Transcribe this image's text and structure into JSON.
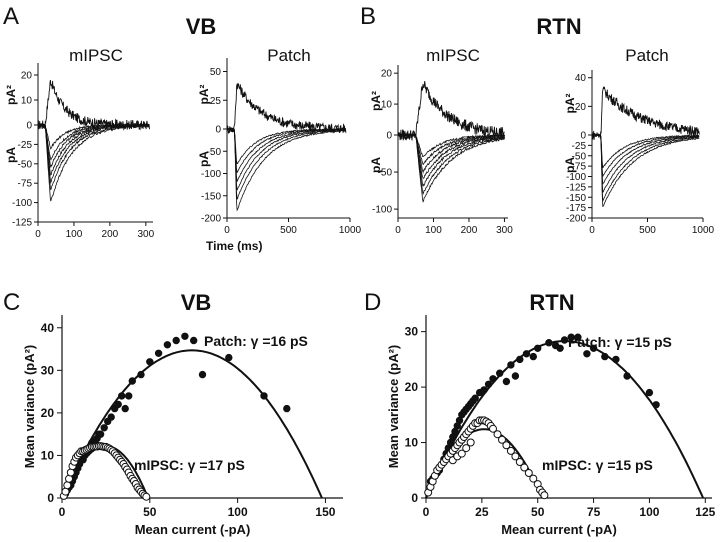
{
  "panels": {
    "A": {
      "letter": "A",
      "title": "VB"
    },
    "B": {
      "letter": "B",
      "title": "RTN"
    },
    "C": {
      "letter": "C",
      "title": "VB"
    },
    "D": {
      "letter": "D",
      "title": "RTN"
    }
  },
  "trace_plots": [
    {
      "id": "A-mIPSC",
      "subtitle": "mIPSC",
      "variance_axis": {
        "label": "pA²",
        "ticks": [
          0,
          10,
          20
        ],
        "range": [
          -4,
          24
        ],
        "tick_labels": [
          "0",
          "10",
          "20"
        ]
      },
      "current_axis": {
        "label": "pA",
        "ticks": [
          -25,
          -50,
          -75,
          -100,
          -125
        ],
        "tick_labels": [
          "-25",
          "-50",
          "-75",
          "-100",
          "-125"
        ],
        "range": [
          -125,
          0
        ]
      },
      "time_axis": {
        "ticks": [
          0,
          100,
          200,
          300
        ],
        "tick_labels": [
          "0",
          "100",
          "200",
          "300"
        ],
        "range": [
          0,
          320
        ]
      },
      "sweeps": {
        "onset_ms": 20,
        "peak_ms": 35,
        "current_peaks": [
          -30,
          -45,
          -55,
          -65,
          -75,
          -85,
          -100
        ],
        "current_decay_ms": 40,
        "variance_peak": 18,
        "variance_decay_ms": 40
      }
    },
    {
      "id": "A-Patch",
      "subtitle": "Patch",
      "variance_axis": {
        "label": "pA²",
        "ticks": [
          0,
          25,
          50
        ],
        "range": [
          -8,
          60
        ],
        "tick_labels": [
          "0",
          "25",
          "50"
        ]
      },
      "current_axis": {
        "label": "pA",
        "ticks": [
          -50,
          -100,
          -150,
          -200
        ],
        "tick_labels": [
          "-50",
          "-100",
          "-150",
          "-200"
        ],
        "range": [
          -200,
          0
        ]
      },
      "time_axis": {
        "ticks": [
          0,
          500,
          1000
        ],
        "tick_labels": [
          "0",
          "500",
          "1000"
        ],
        "range": [
          0,
          1000
        ]
      },
      "sweeps": {
        "onset_ms": 60,
        "peak_ms": 80,
        "current_peaks": [
          -80,
          -100,
          -120,
          -140,
          -160,
          -185
        ],
        "current_decay_ms": 160,
        "variance_peak": 40,
        "variance_decay_ms": 200
      }
    },
    {
      "id": "B-mIPSC",
      "subtitle": "mIPSC",
      "variance_axis": {
        "label": "pA²",
        "ticks": [
          0,
          10,
          20
        ],
        "range": [
          -3,
          22
        ],
        "tick_labels": [
          "0",
          "10",
          "20"
        ]
      },
      "current_axis": {
        "label": "pA",
        "ticks": [
          -50,
          -100
        ],
        "tick_labels": [
          "-50",
          "-100"
        ],
        "range": [
          -112,
          0
        ]
      },
      "time_axis": {
        "ticks": [
          0,
          100,
          200,
          300
        ],
        "tick_labels": [
          "0",
          "100",
          "200",
          "300"
        ],
        "range": [
          0,
          310
        ]
      },
      "sweeps": {
        "onset_ms": 50,
        "peak_ms": 70,
        "current_peaks": [
          -30,
          -40,
          -50,
          -60,
          -70,
          -80,
          -90
        ],
        "current_decay_ms": 55,
        "variance_peak": 17,
        "variance_decay_ms": 70
      }
    },
    {
      "id": "B-Patch",
      "subtitle": "Patch",
      "variance_axis": {
        "label": "pA²",
        "ticks": [
          0,
          20,
          40
        ],
        "range": [
          -6,
          44
        ],
        "tick_labels": [
          "0",
          "20",
          "40"
        ]
      },
      "current_axis": {
        "label": "pA",
        "ticks": [
          -25,
          -50,
          -75,
          -100,
          -125,
          -150,
          -175,
          -200
        ],
        "tick_labels": [
          "-25",
          "-50",
          "-75",
          "-100",
          "-125",
          "-150",
          "-175",
          "-200"
        ],
        "range": [
          -200,
          0
        ]
      },
      "time_axis": {
        "ticks": [
          0,
          500,
          1000
        ],
        "tick_labels": [
          "0",
          "500",
          "1000"
        ],
        "range": [
          0,
          1000
        ]
      },
      "sweeps": {
        "onset_ms": 80,
        "peak_ms": 95,
        "current_peaks": [
          -80,
          -100,
          -120,
          -140,
          -160,
          -175
        ],
        "current_decay_ms": 200,
        "variance_peak": 32,
        "variance_decay_ms": 350
      }
    }
  ],
  "time_label": "Time (ms)",
  "chart_data": [
    {
      "type": "scatter",
      "panel": "C",
      "title": "VB",
      "xlabel": "Mean current (-pA)",
      "ylabel": "Mean variance (pA²)",
      "xlim": [
        0,
        160
      ],
      "ylim": [
        0,
        43
      ],
      "xticks": [
        0,
        50,
        100,
        150
      ],
      "yticks": [
        0,
        10,
        20,
        30,
        40
      ],
      "series": [
        {
          "name": "Patch",
          "label": "Patch: γ =16 pS",
          "marker": "filled",
          "points": [
            [
              2,
              1
            ],
            [
              3,
              1.8
            ],
            [
              4,
              2.5
            ],
            [
              5,
              3
            ],
            [
              6,
              4
            ],
            [
              7,
              5
            ],
            [
              8,
              6
            ],
            [
              9,
              7
            ],
            [
              10,
              8
            ],
            [
              11,
              9.5
            ],
            [
              12,
              9
            ],
            [
              13,
              10
            ],
            [
              14,
              10.5
            ],
            [
              15,
              11
            ],
            [
              16,
              12
            ],
            [
              17,
              13
            ],
            [
              18,
              12.5
            ],
            [
              19,
              13.5
            ],
            [
              20,
              14
            ],
            [
              21,
              15
            ],
            [
              22,
              15
            ],
            [
              24,
              16.5
            ],
            [
              26,
              18
            ],
            [
              28,
              19
            ],
            [
              30,
              21
            ],
            [
              32,
              22
            ],
            [
              34,
              24
            ],
            [
              36,
              21
            ],
            [
              38,
              24
            ],
            [
              40,
              27.5
            ],
            [
              45,
              29
            ],
            [
              50,
              32
            ],
            [
              55,
              34
            ],
            [
              60,
              36
            ],
            [
              65,
              37
            ],
            [
              70,
              38
            ],
            [
              75,
              37
            ],
            [
              80,
              29
            ],
            [
              95,
              33
            ],
            [
              115,
              24
            ],
            [
              128,
              21
            ]
          ],
          "fit": {
            "vertex_x": 74,
            "max": 34.7,
            "x_intercept": 148
          }
        },
        {
          "name": "mIPSC",
          "label": "mIPSC: γ =17 pS",
          "marker": "open",
          "points": [
            [
              1,
              0.5
            ],
            [
              2,
              1.5
            ],
            [
              3,
              3
            ],
            [
              4,
              4.5
            ],
            [
              5,
              6
            ],
            [
              6,
              7.5
            ],
            [
              7,
              8.5
            ],
            [
              8,
              9.5
            ],
            [
              9,
              10
            ],
            [
              10,
              10.5
            ],
            [
              11,
              11
            ],
            [
              12,
              11
            ],
            [
              13,
              11.2
            ],
            [
              14,
              11.4
            ],
            [
              15,
              11.6
            ],
            [
              16,
              11.8
            ],
            [
              17,
              12
            ],
            [
              18,
              12
            ],
            [
              19,
              12.1
            ],
            [
              20,
              12.1
            ],
            [
              21,
              12.2
            ],
            [
              22,
              12.2
            ],
            [
              23,
              12.1
            ],
            [
              24,
              12
            ],
            [
              25,
              12
            ],
            [
              26,
              11.8
            ],
            [
              27,
              11.6
            ],
            [
              28,
              11.3
            ],
            [
              29,
              11
            ],
            [
              30,
              10.5
            ],
            [
              31,
              10
            ],
            [
              32,
              9.5
            ],
            [
              33,
              9
            ],
            [
              34,
              8.5
            ],
            [
              35,
              8
            ],
            [
              36,
              7.3
            ],
            [
              37,
              6.7
            ],
            [
              38,
              6
            ],
            [
              39,
              5.2
            ],
            [
              40,
              4.5
            ],
            [
              41,
              4
            ],
            [
              42,
              3.3
            ],
            [
              43,
              2.5
            ],
            [
              44,
              2
            ],
            [
              45,
              1.5
            ],
            [
              46,
              1
            ],
            [
              47,
              0.6
            ],
            [
              48,
              0.3
            ]
          ],
          "fit": {
            "vertex_x": 25,
            "max": 12.2,
            "x_intercept": 49
          }
        }
      ]
    },
    {
      "type": "scatter",
      "panel": "D",
      "title": "RTN",
      "xlabel": "Mean current (-pA)",
      "ylabel": "Mean variance (pA²)",
      "xlim": [
        0,
        128
      ],
      "ylim": [
        0,
        33
      ],
      "xticks": [
        0,
        25,
        50,
        75,
        100,
        125
      ],
      "yticks": [
        0,
        10,
        20,
        30
      ],
      "series": [
        {
          "name": "Patch",
          "label": "Patch: γ =15 pS",
          "marker": "filled",
          "points": [
            [
              2,
              3
            ],
            [
              3,
              3.5
            ],
            [
              4,
              4
            ],
            [
              5,
              4.5
            ],
            [
              6,
              5
            ],
            [
              7,
              6
            ],
            [
              8,
              7
            ],
            [
              9,
              8
            ],
            [
              10,
              9
            ],
            [
              11,
              10
            ],
            [
              12,
              11
            ],
            [
              13,
              12
            ],
            [
              14,
              13
            ],
            [
              15,
              14
            ],
            [
              16,
              15
            ],
            [
              17,
              15.5
            ],
            [
              18,
              16
            ],
            [
              19,
              16.5
            ],
            [
              20,
              17
            ],
            [
              21,
              17.5
            ],
            [
              22,
              18
            ],
            [
              24,
              19
            ],
            [
              26,
              19.5
            ],
            [
              28,
              20.5
            ],
            [
              30,
              21.5
            ],
            [
              33,
              22.5
            ],
            [
              36,
              21
            ],
            [
              38,
              24
            ],
            [
              40,
              22
            ],
            [
              42,
              25
            ],
            [
              45,
              26
            ],
            [
              48,
              25.5
            ],
            [
              50,
              27
            ],
            [
              55,
              28
            ],
            [
              58,
              27.5
            ],
            [
              60,
              27
            ],
            [
              62,
              28.5
            ],
            [
              65,
              29
            ],
            [
              68,
              29
            ],
            [
              72,
              26
            ],
            [
              75,
              27
            ],
            [
              80,
              25.5
            ],
            [
              85,
              25
            ],
            [
              90,
              22
            ],
            [
              100,
              19
            ],
            [
              103,
              16.8
            ]
          ],
          "fit": {
            "vertex_x": 62,
            "max": 28.3,
            "x_intercept": 124
          }
        },
        {
          "name": "mIPSC",
          "label": "mIPSC: γ =15 pS",
          "marker": "open",
          "points": [
            [
              1,
              1
            ],
            [
              2,
              2
            ],
            [
              3,
              3
            ],
            [
              4,
              4
            ],
            [
              5,
              5
            ],
            [
              6,
              5.5
            ],
            [
              7,
              6
            ],
            [
              8,
              6.5
            ],
            [
              9,
              7
            ],
            [
              10,
              7.5
            ],
            [
              11,
              8
            ],
            [
              12,
              8.5
            ],
            [
              13,
              9
            ],
            [
              14,
              9.5
            ],
            [
              15,
              10
            ],
            [
              16,
              10.5
            ],
            [
              17,
              11
            ],
            [
              18,
              11.5
            ],
            [
              19,
              12
            ],
            [
              20,
              12.5
            ],
            [
              21,
              13
            ],
            [
              22,
              13.5
            ],
            [
              23,
              13.5
            ],
            [
              24,
              14
            ],
            [
              25,
              14
            ],
            [
              26,
              14
            ],
            [
              27,
              13.8
            ],
            [
              28,
              13.5
            ],
            [
              29,
              13
            ],
            [
              30,
              12.5
            ],
            [
              32,
              11.5
            ],
            [
              34,
              10.5
            ],
            [
              36,
              9.5
            ],
            [
              38,
              8.5
            ],
            [
              40,
              7.5
            ],
            [
              42,
              6.5
            ],
            [
              44,
              5.5
            ],
            [
              46,
              4.5
            ],
            [
              48,
              3.5
            ],
            [
              50,
              2.5
            ],
            [
              51,
              1.5
            ],
            [
              52,
              1
            ],
            [
              53,
              0.5
            ],
            [
              12,
              6.8
            ],
            [
              14,
              7.5
            ],
            [
              16,
              8
            ],
            [
              18,
              9
            ],
            [
              20,
              10
            ]
          ],
          "fit": {
            "vertex_x": 26,
            "max": 12.4,
            "x_intercept": 52
          }
        }
      ]
    }
  ]
}
